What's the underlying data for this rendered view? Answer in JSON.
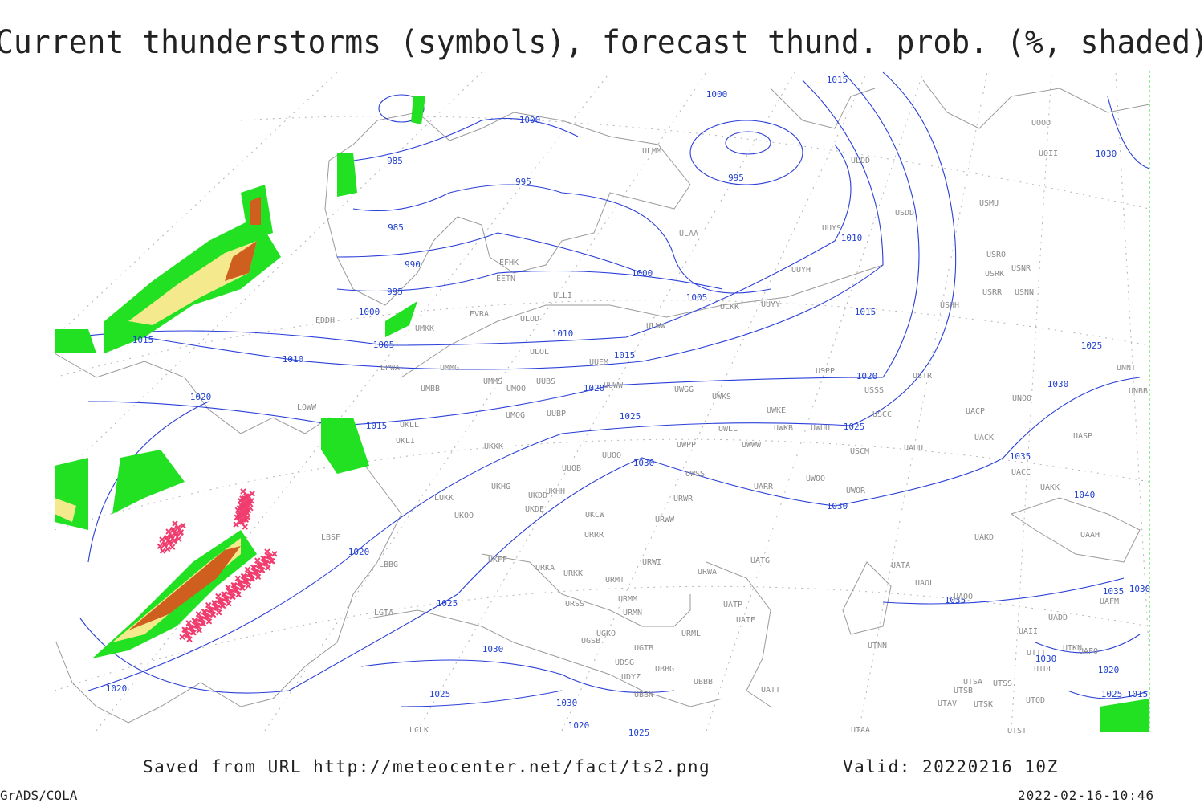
{
  "title": "Current thunderstorms (symbols), forecast thund. prob. (%, shaded)",
  "footer": {
    "source": "Saved from URL http://meteocenter.net/fact/ts2.png",
    "valid": "Valid: 20220216 10Z",
    "software": "GrADS/COLA",
    "timestamp": "2022-02-16-10:46"
  },
  "isobar_labels": [
    "985",
    "985",
    "990",
    "995",
    "1000",
    "1005",
    "1010",
    "1015",
    "1020",
    "1015",
    "1020",
    "1025",
    "1000",
    "995",
    "1000",
    "995",
    "1015",
    "1010",
    "1015",
    "1020",
    "1025",
    "1030",
    "1035",
    "1030",
    "1025",
    "1030",
    "1040",
    "1035",
    "1035",
    "1030",
    "1030",
    "1020",
    "1025",
    "1015",
    "1010",
    "1015",
    "1020",
    "1025",
    "1030",
    "1000",
    "1005",
    "1020",
    "1030",
    "1025",
    "1030",
    "1020",
    "1025"
  ],
  "stations": [
    "ULMM",
    "ULDD",
    "USDD",
    "USMU",
    "UOOO",
    "UOII",
    "ULAA",
    "UUYS",
    "USRO",
    "USRK",
    "USNR",
    "USRR",
    "USNN",
    "UUYH",
    "EFHK",
    "EETN",
    "ULLI",
    "ULKK",
    "UUYY",
    "USHH",
    "EVRA",
    "ULOD",
    "EDDH",
    "UMKK",
    "ULWW",
    "ULOL",
    "UUEM",
    "EPWA",
    "UMMG",
    "USPP",
    "USTR",
    "UMMS",
    "UUBS",
    "UUWW",
    "UMBB",
    "UMOO",
    "UWGG",
    "UWKS",
    "USSS",
    "UNNT",
    "UNBB",
    "LOWW",
    "UUBP",
    "UMOG",
    "UWKE",
    "UWKB",
    "UWUU",
    "USCC",
    "UACP",
    "UNOO",
    "UKLL",
    "UKLI",
    "UWLL",
    "UWPP",
    "UWWW",
    "USCM",
    "UAUU",
    "UACK",
    "UASP",
    "UKKK",
    "UUOO",
    "UUOB",
    "UWSS",
    "UACC",
    "UAKK",
    "UWOO",
    "UWOR",
    "UARR",
    "LUKK",
    "UKHG",
    "UKDD",
    "UKHH",
    "URWR",
    "UKDE",
    "UKOO",
    "UKCW",
    "URWW",
    "UAKD",
    "UAAH",
    "URRR",
    "LBSF",
    "UKFF",
    "URWI",
    "UATG",
    "LBBG",
    "URKA",
    "URKK",
    "URWA",
    "UATA",
    "UAOL",
    "URMT",
    "UAOO",
    "UAFM",
    "URMM",
    "URSS",
    "UATP",
    "URMN",
    "UATE",
    "UADD",
    "LGTA",
    "UAII",
    "UGKO",
    "URML",
    "UGSB",
    "UGTB",
    "UTNN",
    "UTKN",
    "UTTT",
    "UAFO",
    "UTDL",
    "UDSG",
    "UBBG",
    "UBBB",
    "UTSA",
    "UTSS",
    "UDYZ",
    "UTSB",
    "UATT",
    "UBBN",
    "UTAV",
    "UTSK",
    "UTOD",
    "LCLK",
    "UTAA",
    "UTST"
  ]
}
